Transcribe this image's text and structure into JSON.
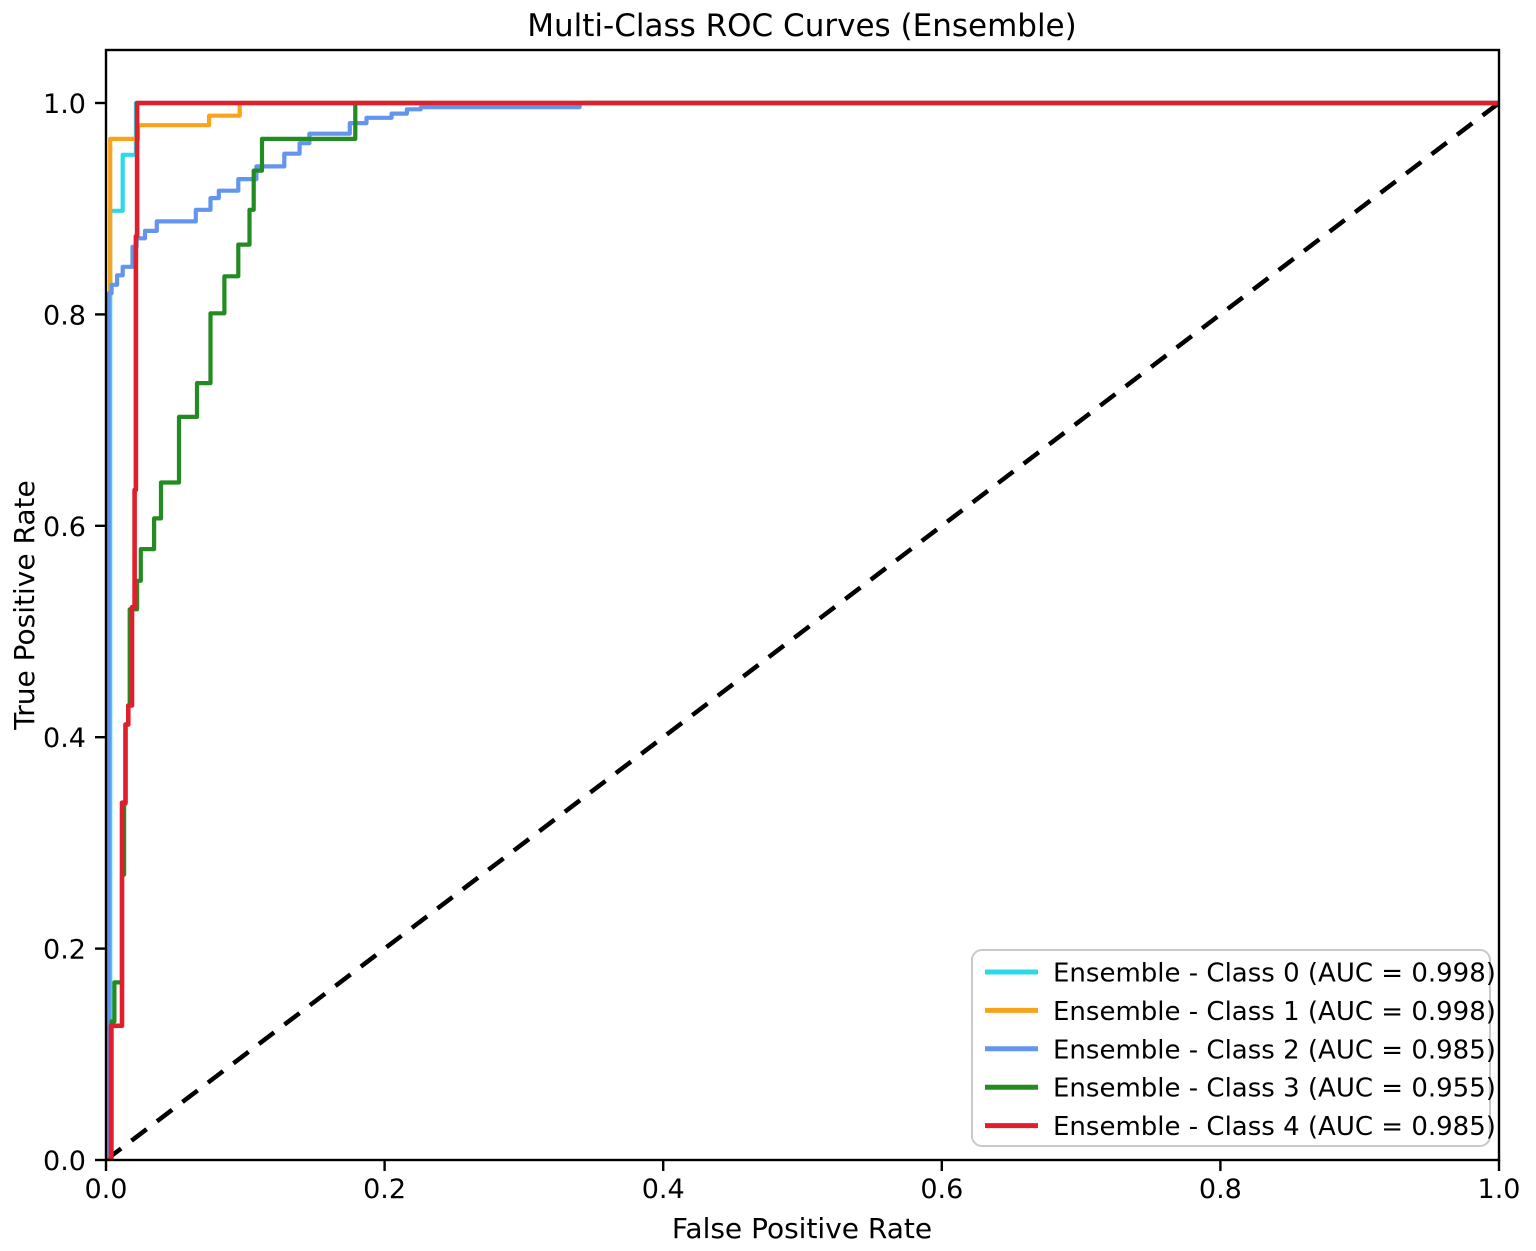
{
  "chart_data": {
    "type": "line",
    "subtype": "roc-step-curves",
    "title": "Multi-Class ROC Curves (Ensemble)",
    "xlabel": "False Positive Rate",
    "ylabel": "True Positive Rate",
    "xlim": [
      0.0,
      1.0
    ],
    "ylim": [
      0.0,
      1.05
    ],
    "grid": false,
    "background_color": "#ffffff",
    "axis_color": "#000000",
    "x_tick_values": [
      0.0,
      0.2,
      0.4,
      0.6,
      0.8,
      1.0
    ],
    "x_tick_labels": [
      "0.0",
      "0.2",
      "0.4",
      "0.6",
      "0.8",
      "1.0"
    ],
    "y_tick_values": [
      0.0,
      0.2,
      0.4,
      0.6,
      0.8,
      1.0
    ],
    "y_tick_labels": [
      "0.0",
      "0.2",
      "0.4",
      "0.6",
      "0.8",
      "1.0"
    ],
    "legend": {
      "position": "lower right",
      "border_color": "#c9c9c9",
      "background_color": "#ffffff"
    },
    "reference_line": {
      "name": "chance-diagonal",
      "style": "dashed",
      "color": "#000000",
      "points": [
        [
          0,
          0
        ],
        [
          1,
          1
        ]
      ]
    },
    "series": [
      {
        "label": "Ensemble - Class 0 (AUC = 0.998)",
        "class": "Class 0",
        "auc": 0.998,
        "color": "#2bd9e8",
        "points": [
          [
            0,
            0
          ],
          [
            0.003,
            0
          ],
          [
            0.003,
            0.898
          ],
          [
            0.012,
            0.898
          ],
          [
            0.012,
            0.951
          ],
          [
            0.0215,
            0.951
          ],
          [
            0.0215,
            1.0
          ],
          [
            1,
            1
          ]
        ]
      },
      {
        "label": "Ensemble - Class 1 (AUC = 0.998)",
        "class": "Class 1",
        "auc": 0.998,
        "color": "#f9a21c",
        "points": [
          [
            0,
            0
          ],
          [
            0.0015,
            0
          ],
          [
            0.0015,
            0.818
          ],
          [
            0.003,
            0.818
          ],
          [
            0.003,
            0.966
          ],
          [
            0.023,
            0.966
          ],
          [
            0.023,
            0.979
          ],
          [
            0.074,
            0.979
          ],
          [
            0.074,
            0.988
          ],
          [
            0.096,
            0.988
          ],
          [
            0.096,
            1.0
          ],
          [
            1,
            1
          ]
        ]
      },
      {
        "label": "Ensemble - Class 2 (AUC = 0.985)",
        "class": "Class 2",
        "auc": 0.985,
        "color": "#6495ed",
        "points": [
          [
            0,
            0
          ],
          [
            0.002,
            0
          ],
          [
            0.002,
            0.82
          ],
          [
            0.004,
            0.82
          ],
          [
            0.004,
            0.828
          ],
          [
            0.008,
            0.828
          ],
          [
            0.008,
            0.837
          ],
          [
            0.012,
            0.837
          ],
          [
            0.012,
            0.845
          ],
          [
            0.019,
            0.845
          ],
          [
            0.019,
            0.864
          ],
          [
            0.022,
            0.864
          ],
          [
            0.022,
            0.872
          ],
          [
            0.028,
            0.872
          ],
          [
            0.028,
            0.879
          ],
          [
            0.0365,
            0.879
          ],
          [
            0.0365,
            0.888
          ],
          [
            0.0645,
            0.888
          ],
          [
            0.0645,
            0.899
          ],
          [
            0.075,
            0.899
          ],
          [
            0.075,
            0.91
          ],
          [
            0.081,
            0.91
          ],
          [
            0.081,
            0.917
          ],
          [
            0.095,
            0.917
          ],
          [
            0.095,
            0.928
          ],
          [
            0.108,
            0.928
          ],
          [
            0.108,
            0.94
          ],
          [
            0.128,
            0.94
          ],
          [
            0.128,
            0.952
          ],
          [
            0.139,
            0.952
          ],
          [
            0.139,
            0.962
          ],
          [
            0.146,
            0.962
          ],
          [
            0.146,
            0.971
          ],
          [
            0.175,
            0.971
          ],
          [
            0.175,
            0.981
          ],
          [
            0.187,
            0.981
          ],
          [
            0.187,
            0.986
          ],
          [
            0.205,
            0.986
          ],
          [
            0.205,
            0.99
          ],
          [
            0.216,
            0.99
          ],
          [
            0.216,
            0.994
          ],
          [
            0.226,
            0.994
          ],
          [
            0.226,
            0.996
          ],
          [
            0.34,
            0.996
          ],
          [
            0.34,
            1.0
          ],
          [
            1,
            1
          ]
        ]
      },
      {
        "label": "Ensemble - Class 3 (AUC = 0.955)",
        "class": "Class 3",
        "auc": 0.955,
        "color": "#228b22",
        "points": [
          [
            0,
            0
          ],
          [
            0.004,
            0
          ],
          [
            0.004,
            0.131
          ],
          [
            0.006,
            0.131
          ],
          [
            0.006,
            0.168
          ],
          [
            0.0115,
            0.168
          ],
          [
            0.0115,
            0.27
          ],
          [
            0.013,
            0.27
          ],
          [
            0.013,
            0.337
          ],
          [
            0.014,
            0.337
          ],
          [
            0.014,
            0.412
          ],
          [
            0.016,
            0.412
          ],
          [
            0.016,
            0.43
          ],
          [
            0.017,
            0.43
          ],
          [
            0.017,
            0.521
          ],
          [
            0.0223,
            0.521
          ],
          [
            0.0223,
            0.548
          ],
          [
            0.025,
            0.548
          ],
          [
            0.025,
            0.578
          ],
          [
            0.0345,
            0.578
          ],
          [
            0.0345,
            0.607
          ],
          [
            0.0395,
            0.607
          ],
          [
            0.0395,
            0.641
          ],
          [
            0.0524,
            0.641
          ],
          [
            0.0524,
            0.703
          ],
          [
            0.0653,
            0.703
          ],
          [
            0.0653,
            0.735
          ],
          [
            0.075,
            0.735
          ],
          [
            0.075,
            0.801
          ],
          [
            0.085,
            0.801
          ],
          [
            0.085,
            0.836
          ],
          [
            0.095,
            0.836
          ],
          [
            0.095,
            0.866
          ],
          [
            0.103,
            0.866
          ],
          [
            0.103,
            0.899
          ],
          [
            0.106,
            0.899
          ],
          [
            0.106,
            0.936
          ],
          [
            0.112,
            0.936
          ],
          [
            0.112,
            0.966
          ],
          [
            0.179,
            0.966
          ],
          [
            0.179,
            1.0
          ],
          [
            1,
            1
          ]
        ]
      },
      {
        "label": "Ensemble - Class 4 (AUC = 0.985)",
        "class": "Class 4",
        "auc": 0.985,
        "color": "#e01e2c",
        "points": [
          [
            0,
            0
          ],
          [
            0.0036,
            0
          ],
          [
            0.0036,
            0.127
          ],
          [
            0.0115,
            0.127
          ],
          [
            0.0115,
            0.338
          ],
          [
            0.014,
            0.338
          ],
          [
            0.014,
            0.412
          ],
          [
            0.016,
            0.412
          ],
          [
            0.016,
            0.43
          ],
          [
            0.0187,
            0.43
          ],
          [
            0.0187,
            0.523
          ],
          [
            0.0205,
            0.523
          ],
          [
            0.0205,
            0.634
          ],
          [
            0.0215,
            0.634
          ],
          [
            0.0215,
            0.874
          ],
          [
            0.0223,
            0.874
          ],
          [
            0.0223,
            1.0
          ],
          [
            1,
            1
          ]
        ]
      }
    ]
  }
}
